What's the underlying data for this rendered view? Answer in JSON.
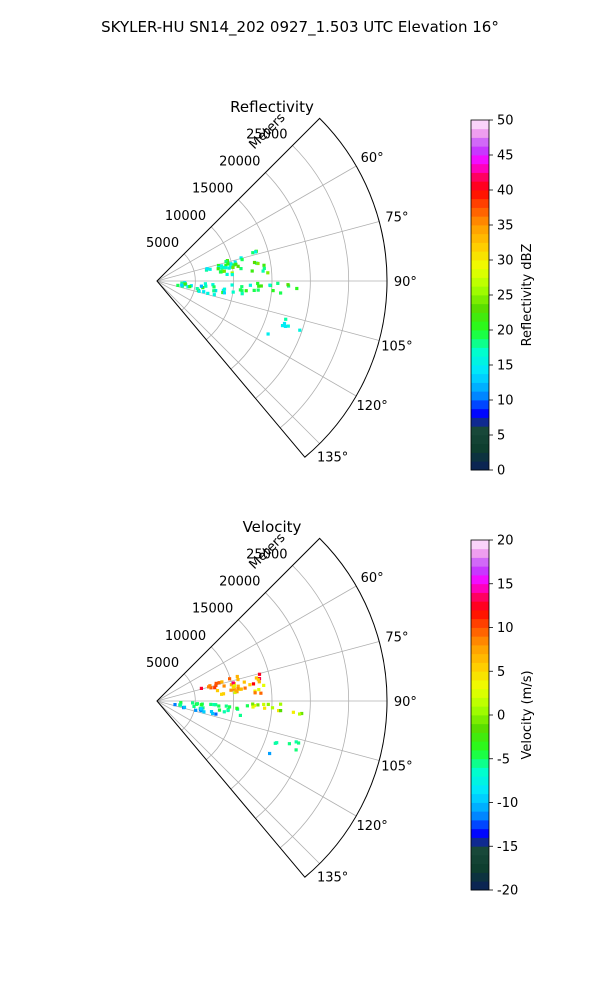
{
  "figure": {
    "suptitle": "SKYLER-HU  SN14_202  0927_1.503 UTC Elevation 16°"
  },
  "chart_data": [
    {
      "type": "polar-sector",
      "title": "Reflectivity",
      "range_label": "Meters",
      "range_ticks": [
        5000,
        10000,
        15000,
        20000,
        25000
      ],
      "range_max": 30000,
      "azimuth_ticks": [
        60,
        75,
        90,
        105,
        120,
        135
      ],
      "azimuth_tick_labels": [
        "60°",
        "75°",
        "90°",
        "105°",
        "120°",
        "135°"
      ],
      "azimuth_range": [
        45,
        140
      ],
      "grid": true,
      "colorbar": {
        "label": "Reflectivity dBZ",
        "min": 0,
        "max": 50,
        "ticks": [
          0,
          5,
          10,
          15,
          20,
          25,
          30,
          35,
          40,
          45,
          50
        ]
      },
      "echo_regions": [
        {
          "az": [
            73,
            80
          ],
          "range": [
            6000,
            14000
          ],
          "values": [
            14,
            22
          ]
        },
        {
          "az": [
            78,
            86
          ],
          "range": [
            8000,
            15000
          ],
          "values": [
            16,
            26
          ]
        },
        {
          "az": [
            93,
            100
          ],
          "range": [
            3000,
            12000
          ],
          "values": [
            12,
            22
          ]
        },
        {
          "az": [
            91,
            96
          ],
          "range": [
            12000,
            19000
          ],
          "values": [
            16,
            24
          ]
        },
        {
          "az": [
            99,
            104
          ],
          "range": [
            2000,
            8000
          ],
          "values": [
            12,
            22
          ]
        },
        {
          "az": [
            106,
            110
          ],
          "range": [
            16000,
            20000
          ],
          "values": [
            14,
            18
          ]
        },
        {
          "az": [
            115,
            117
          ],
          "range": [
            16000,
            17000
          ],
          "values": [
            15,
            15
          ]
        }
      ]
    },
    {
      "type": "polar-sector",
      "title": "Velocity",
      "range_label": "Meters",
      "range_ticks": [
        5000,
        10000,
        15000,
        20000,
        25000
      ],
      "range_max": 30000,
      "azimuth_ticks": [
        60,
        75,
        90,
        105,
        120,
        135
      ],
      "azimuth_tick_labels": [
        "60°",
        "75°",
        "90°",
        "105°",
        "120°",
        "135°"
      ],
      "azimuth_range": [
        45,
        140
      ],
      "grid": true,
      "colorbar": {
        "label": "Velocity (m/s)",
        "min": -20,
        "max": 20,
        "ticks": [
          -20,
          -15,
          -10,
          -5,
          0,
          5,
          10,
          15,
          20
        ]
      },
      "echo_regions": [
        {
          "az": [
            73,
            80
          ],
          "range": [
            6000,
            14000
          ],
          "values": [
            6,
            14
          ]
        },
        {
          "az": [
            78,
            86
          ],
          "range": [
            8000,
            15000
          ],
          "values": [
            2,
            10
          ]
        },
        {
          "az": [
            93,
            100
          ],
          "range": [
            3000,
            12000
          ],
          "values": [
            -6,
            -4
          ]
        },
        {
          "az": [
            91,
            96
          ],
          "range": [
            12000,
            19000
          ],
          "values": [
            -2,
            6
          ]
        },
        {
          "az": [
            99,
            104
          ],
          "range": [
            2000,
            8000
          ],
          "values": [
            -12,
            -9
          ]
        },
        {
          "az": [
            106,
            110
          ],
          "range": [
            16000,
            20000
          ],
          "values": [
            -6,
            -5
          ]
        },
        {
          "az": [
            115,
            117
          ],
          "range": [
            16000,
            17000
          ],
          "values": [
            -11,
            -11
          ]
        }
      ]
    }
  ]
}
